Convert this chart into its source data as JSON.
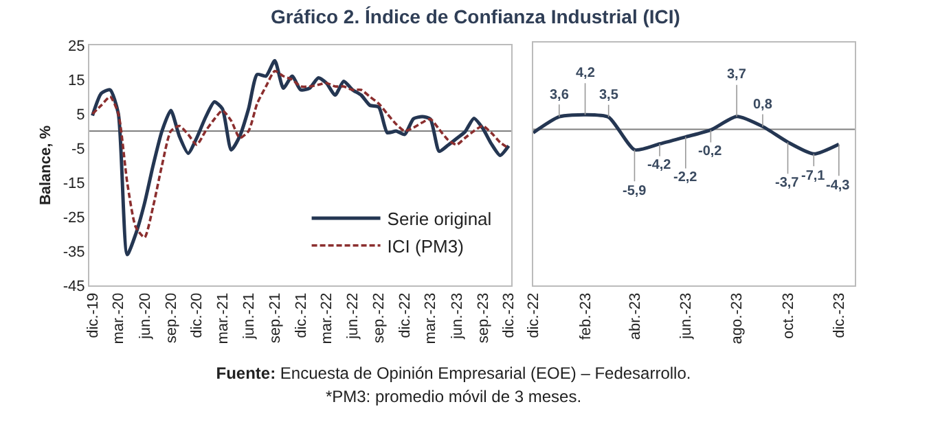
{
  "chart_data": [
    {
      "type": "line",
      "title": "Gráfico 2. Índice de Confianza Industrial (ICI)",
      "ylabel": "Balance, %",
      "annotations": [
        "Fuente: Encuesta de Opinión Empresarial (EOE) – Fedesarrollo.",
        "*PM3: promedio móvil de 3 meses."
      ],
      "x": [
        "2019-12",
        "2020-01",
        "2020-02",
        "2020-03",
        "2020-04",
        "2020-05",
        "2020-06",
        "2020-07",
        "2020-08",
        "2020-09",
        "2020-10",
        "2020-11",
        "2020-12",
        "2021-01",
        "2021-02",
        "2021-03",
        "2021-04",
        "2021-05",
        "2021-06",
        "2021-07",
        "2021-08",
        "2021-09",
        "2021-10",
        "2021-11",
        "2021-12",
        "2022-01",
        "2022-02",
        "2022-03",
        "2022-04",
        "2022-05",
        "2022-06",
        "2022-07",
        "2022-08",
        "2022-09",
        "2022-10",
        "2022-11",
        "2022-12",
        "2023-01",
        "2023-02",
        "2023-03",
        "2023-04",
        "2023-05",
        "2023-06",
        "2023-07",
        "2023-08",
        "2023-09",
        "2023-10",
        "2023-11",
        "2023-12"
      ],
      "series": [
        {
          "name": "Serie original",
          "color": "#243652",
          "line_style": "solid",
          "values": [
            4.5,
            11,
            12,
            5,
            -36,
            -30,
            -21,
            -10,
            0,
            6,
            -1.5,
            -6.5,
            -2,
            4,
            8.5,
            6.5,
            -5.5,
            -1.5,
            6.5,
            16.5,
            16,
            20.5,
            12.5,
            16,
            12,
            12.5,
            15.5,
            14,
            10.5,
            14.5,
            12,
            10.5,
            7.5,
            7,
            -0.5,
            0,
            -1,
            3.6,
            4.2,
            3.5,
            -5.9,
            -4.2,
            -2.2,
            -0.2,
            3.7,
            0.8,
            -3.7,
            -7.1,
            -4.3
          ]
        },
        {
          "name": "ICI (PM3)",
          "color": "#8b2e2e",
          "line_style": "dashed",
          "values": [
            5,
            7.5,
            10,
            5,
            -15,
            -28,
            -31,
            -22,
            -10,
            0,
            1.5,
            -1,
            -4,
            0,
            3.5,
            6,
            3,
            -2,
            0,
            8,
            13,
            17.5,
            16,
            15,
            13,
            13,
            13.5,
            14,
            13,
            13,
            12,
            12,
            10,
            8,
            5,
            2,
            0,
            1,
            2.5,
            3.5,
            0.5,
            -2.5,
            -4,
            -2,
            0,
            1.5,
            -0.5,
            -3.3,
            -5
          ]
        }
      ],
      "ylim": [
        -45,
        25
      ],
      "yticks": [
        -45,
        -35,
        -25,
        -15,
        -5,
        5,
        15,
        25
      ],
      "xlim": [
        "2019-11-20",
        "2023-12-10"
      ],
      "xticks": [
        {
          "value": "2019-12",
          "label": "dic.-19"
        },
        {
          "value": "2020-03",
          "label": "mar.-20"
        },
        {
          "value": "2020-06",
          "label": "jun.-20"
        },
        {
          "value": "2020-09",
          "label": "sep.-20"
        },
        {
          "value": "2020-12",
          "label": "dic.-20"
        },
        {
          "value": "2021-03",
          "label": "mar.-21"
        },
        {
          "value": "2021-06",
          "label": "jun.-21"
        },
        {
          "value": "2021-09",
          "label": "sep.-21"
        },
        {
          "value": "2021-12",
          "label": "dic.-21"
        },
        {
          "value": "2022-03",
          "label": "mar.-22"
        },
        {
          "value": "2022-06",
          "label": "jun.-22"
        },
        {
          "value": "2022-09",
          "label": "sep.-22"
        },
        {
          "value": "2022-12",
          "label": "dic.-22"
        },
        {
          "value": "2023-03",
          "label": "mar.-23"
        },
        {
          "value": "2023-06",
          "label": "jun.-23"
        },
        {
          "value": "2023-09",
          "label": "sep.-23"
        },
        {
          "value": "2023-12",
          "label": "dic.-23"
        }
      ],
      "ref_lines": [
        {
          "axis": "y",
          "value": 0,
          "color": "#808080"
        }
      ],
      "grid": false,
      "legend": "bottom right"
    },
    {
      "type": "line",
      "x": [
        "2022-12",
        "2023-01",
        "2023-02",
        "2023-03",
        "2023-04",
        "2023-05",
        "2023-06",
        "2023-07",
        "2023-08",
        "2023-09",
        "2023-10",
        "2023-11",
        "2023-12"
      ],
      "series": [
        {
          "color": "#243652",
          "line_style": "solid",
          "values": [
            -1,
            3.6,
            4.2,
            3.5,
            -5.9,
            -4.2,
            -2.2,
            -0.2,
            3.7,
            0.8,
            -3.7,
            -7.1,
            -4.3
          ],
          "value_labels": [
            null,
            "3,6",
            "4,2",
            "3,5",
            "-5,9",
            "-4,2",
            "-2,2",
            "-0,2",
            "3,7",
            "0,8",
            "-3,7",
            "-7,1",
            "-4,3"
          ]
        }
      ],
      "ylim": [
        -45,
        25
      ],
      "tick_labels": "x",
      "xlim": [
        "2022-12-01",
        "2023-12-20"
      ],
      "xticks": [
        {
          "value": "2022-12",
          "label": "dic.-22"
        },
        {
          "value": "2023-02",
          "label": "feb.-23"
        },
        {
          "value": "2023-04",
          "label": "abr.-23"
        },
        {
          "value": "2023-06",
          "label": "jun.-23"
        },
        {
          "value": "2023-08",
          "label": "ago.-23"
        },
        {
          "value": "2023-10",
          "label": "oct.-23"
        },
        {
          "value": "2023-12",
          "label": "dic.-23"
        }
      ],
      "ref_lines": [
        {
          "axis": "y",
          "value": 0,
          "color": "#808080"
        }
      ],
      "grid": false,
      "legend": false
    }
  ]
}
